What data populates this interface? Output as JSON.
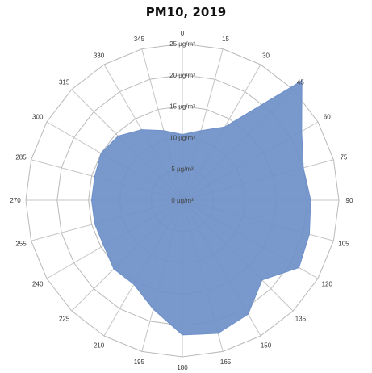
{
  "chart_data": {
    "type": "radar",
    "title": "PM10, 2019",
    "categories": [
      "0",
      "15",
      "30",
      "45",
      "60",
      "75",
      "90",
      "105",
      "120",
      "135",
      "150",
      "165",
      "180",
      "195",
      "210",
      "225",
      "240",
      "255",
      "270",
      "285",
      "300",
      "315",
      "330",
      "345"
    ],
    "ring_labels": [
      "0 µg/m³",
      "5 µg/m³",
      "10 µg/m³",
      "15 µg/m³",
      "20 µg/m³",
      "25 µg/m³"
    ],
    "rlim": [
      0,
      25
    ],
    "series": [
      {
        "values": [
          10.5,
          11.5,
          13.5,
          27.0,
          22.0,
          20.0,
          20.5,
          21.0,
          21.5,
          18.0,
          21.0,
          22.0,
          21.5,
          18.0,
          15.5,
          15.5,
          14.5,
          14.5,
          14.5,
          14.5,
          15.0,
          14.5,
          13.0,
          11.5
        ],
        "color": "#6e90c9"
      }
    ],
    "grid": true
  }
}
